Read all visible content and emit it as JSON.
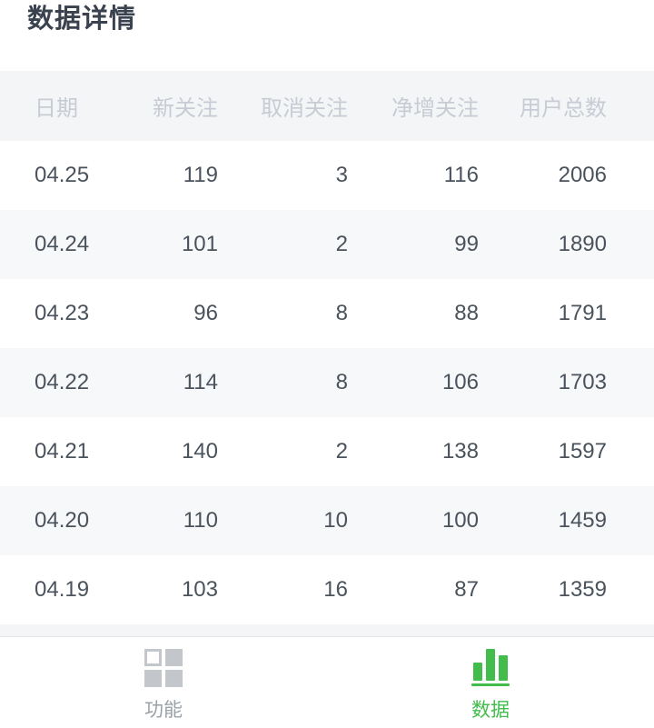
{
  "page": {
    "title": "数据详情"
  },
  "table": {
    "columns": [
      "日期",
      "新关注",
      "取消关注",
      "净增关注",
      "用户总数"
    ],
    "rows": [
      [
        "04.25",
        "119",
        "3",
        "116",
        "2006"
      ],
      [
        "04.24",
        "101",
        "2",
        "99",
        "1890"
      ],
      [
        "04.23",
        "96",
        "8",
        "88",
        "1791"
      ],
      [
        "04.22",
        "114",
        "8",
        "106",
        "1703"
      ],
      [
        "04.21",
        "140",
        "2",
        "138",
        "1597"
      ],
      [
        "04.20",
        "110",
        "10",
        "100",
        "1459"
      ],
      [
        "04.19",
        "103",
        "16",
        "87",
        "1359"
      ]
    ]
  },
  "tabbar": {
    "tabs": [
      {
        "label": "功能",
        "icon": "grid-icon",
        "active": false
      },
      {
        "label": "数据",
        "icon": "bar-chart-icon",
        "active": true
      }
    ]
  },
  "colors": {
    "accent_green": "#42bd4b",
    "inactive_gray": "#9aa1a8",
    "header_text": "#c7ccd4",
    "body_text": "#4a525c",
    "header_bg": "#f4f5f6",
    "alt_row_bg": "#f7f8f9"
  }
}
